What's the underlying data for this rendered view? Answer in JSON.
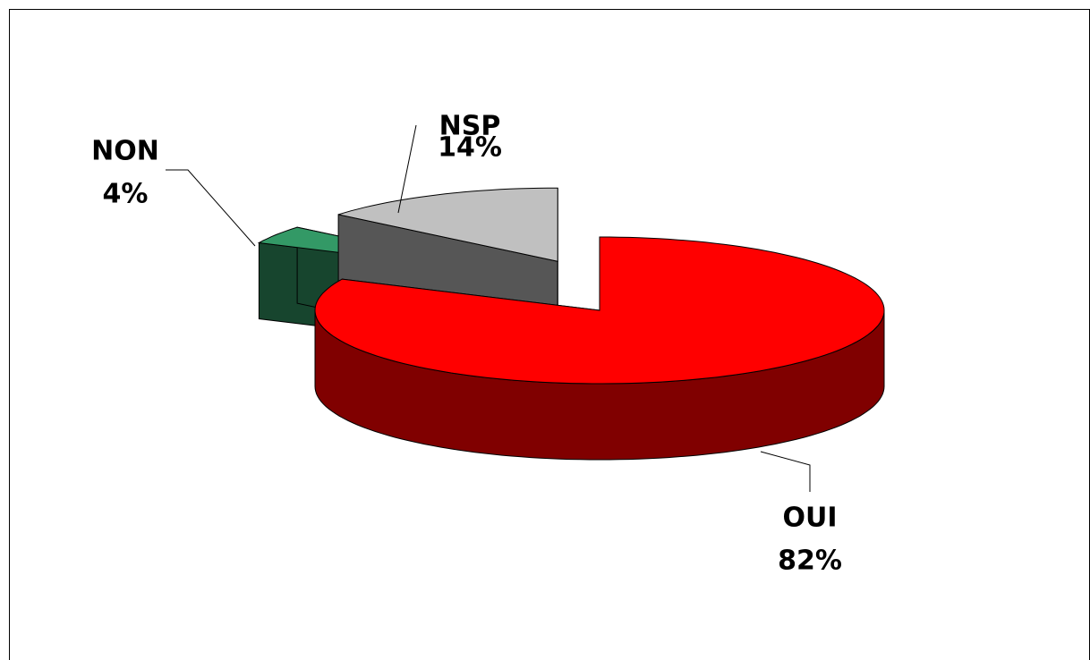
{
  "chart_data": {
    "type": "pie",
    "categories": [
      "OUI",
      "NON",
      "NSP"
    ],
    "values": [
      82,
      4,
      14
    ],
    "value_labels": [
      "82%",
      "4%",
      "14%"
    ],
    "colors": [
      "#ff0000",
      "#339966",
      "#c0c0c0"
    ]
  }
}
